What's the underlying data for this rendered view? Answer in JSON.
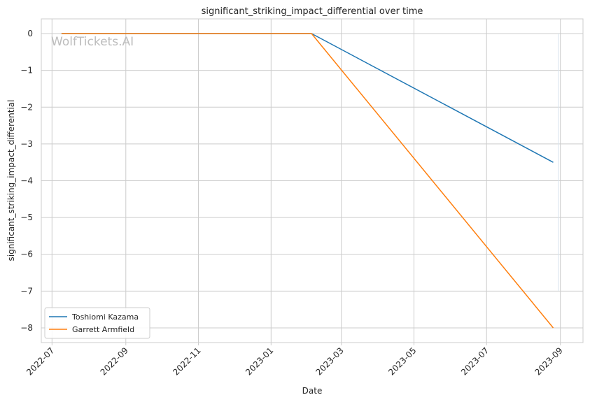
{
  "chart_data": {
    "type": "line",
    "title": "significant_striking_impact_differential over time",
    "xlabel": "Date",
    "ylabel": "significant_striking_impact_differential",
    "x_ticks": [
      "2022-07",
      "2022-09",
      "2022-11",
      "2023-01",
      "2023-03",
      "2023-05",
      "2023-07",
      "2023-09"
    ],
    "y_ticks": [
      0,
      -1,
      -2,
      -3,
      -4,
      -5,
      -6,
      -7,
      -8
    ],
    "x_range": [
      "2022-06-22",
      "2023-09-20"
    ],
    "ylim": [
      -8.4,
      0.4
    ],
    "grid": true,
    "legend_position": "lower-left",
    "watermark": "WolfTickets.AI",
    "series": [
      {
        "name": "Toshiomi Kazama",
        "color": "#1f77b4",
        "points": [
          {
            "x": "2022-07-09",
            "y": 0
          },
          {
            "x": "2023-02-04",
            "y": 0
          },
          {
            "x": "2023-08-26",
            "y": -3.5
          }
        ]
      },
      {
        "name": "Garrett Armfield",
        "color": "#ff7f0e",
        "points": [
          {
            "x": "2022-07-09",
            "y": 0
          },
          {
            "x": "2023-02-04",
            "y": 0
          },
          {
            "x": "2023-08-26",
            "y": -8
          }
        ]
      }
    ]
  }
}
